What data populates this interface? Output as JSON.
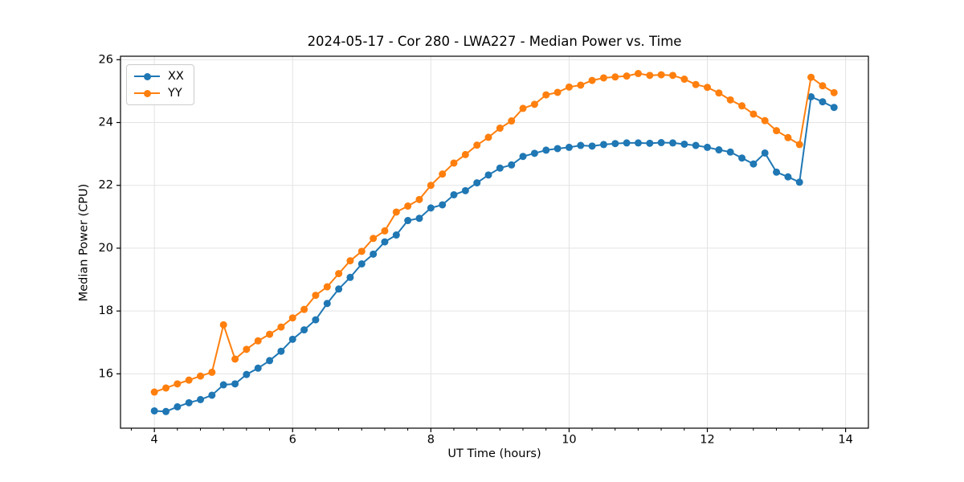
{
  "chart_data": {
    "type": "line",
    "title": "2024-05-17 - Cor 280 - LWA227 - Median Power vs. Time",
    "xlabel": "UT Time (hours)",
    "ylabel": "Median Power (CPU)",
    "xlim": [
      3.51,
      14.33
    ],
    "ylim": [
      14.27,
      26.11
    ],
    "xticks": [
      4,
      6,
      8,
      10,
      12,
      14
    ],
    "yticks": [
      16,
      18,
      20,
      22,
      24,
      26
    ],
    "x_minor_step": 0.3333,
    "grid": "major",
    "legend_position": "upper-left",
    "x": [
      4.0,
      4.167,
      4.333,
      4.5,
      4.667,
      4.833,
      5.0,
      5.167,
      5.333,
      5.5,
      5.667,
      5.833,
      6.0,
      6.167,
      6.333,
      6.5,
      6.667,
      6.833,
      7.0,
      7.167,
      7.333,
      7.5,
      7.667,
      7.833,
      8.0,
      8.167,
      8.333,
      8.5,
      8.667,
      8.833,
      9.0,
      9.167,
      9.333,
      9.5,
      9.667,
      9.833,
      10.0,
      10.167,
      10.333,
      10.5,
      10.667,
      10.833,
      11.0,
      11.167,
      11.333,
      11.5,
      11.667,
      11.833,
      12.0,
      12.167,
      12.333,
      12.5,
      12.667,
      12.833,
      13.0,
      13.167,
      13.333,
      13.5,
      13.667,
      13.833
    ],
    "series": [
      {
        "name": "XX",
        "color": "#1f77b4",
        "values": [
          14.82,
          14.8,
          14.95,
          15.08,
          15.18,
          15.32,
          15.65,
          15.68,
          15.98,
          16.18,
          16.42,
          16.72,
          17.1,
          17.4,
          17.72,
          18.24,
          18.7,
          19.07,
          19.5,
          19.81,
          20.2,
          20.42,
          20.88,
          20.95,
          21.28,
          21.38,
          21.7,
          21.83,
          22.08,
          22.33,
          22.55,
          22.65,
          22.92,
          23.02,
          23.12,
          23.17,
          23.21,
          23.27,
          23.25,
          23.3,
          23.33,
          23.35,
          23.35,
          23.34,
          23.36,
          23.35,
          23.31,
          23.27,
          23.21,
          23.13,
          23.06,
          22.87,
          22.68,
          23.03,
          22.42,
          22.27,
          22.1,
          24.82,
          24.66,
          24.48
        ]
      },
      {
        "name": "YY",
        "color": "#ff7f0e",
        "values": [
          15.42,
          15.55,
          15.68,
          15.8,
          15.93,
          16.05,
          17.56,
          16.47,
          16.78,
          17.05,
          17.26,
          17.49,
          17.78,
          18.05,
          18.5,
          18.77,
          19.19,
          19.6,
          19.9,
          20.31,
          20.55,
          21.15,
          21.34,
          21.55,
          22.0,
          22.36,
          22.71,
          22.98,
          23.28,
          23.53,
          23.82,
          24.05,
          24.45,
          24.58,
          24.88,
          24.96,
          25.13,
          25.19,
          25.34,
          25.42,
          25.45,
          25.48,
          25.56,
          25.5,
          25.52,
          25.5,
          25.38,
          25.21,
          25.12,
          24.94,
          24.72,
          24.53,
          24.27,
          24.06,
          23.74,
          23.52,
          23.3,
          25.44,
          25.17,
          24.95
        ]
      }
    ]
  },
  "colors": {
    "grid": "#e3e3e3",
    "spine": "#000000",
    "text": "#000000",
    "background": "#ffffff"
  }
}
